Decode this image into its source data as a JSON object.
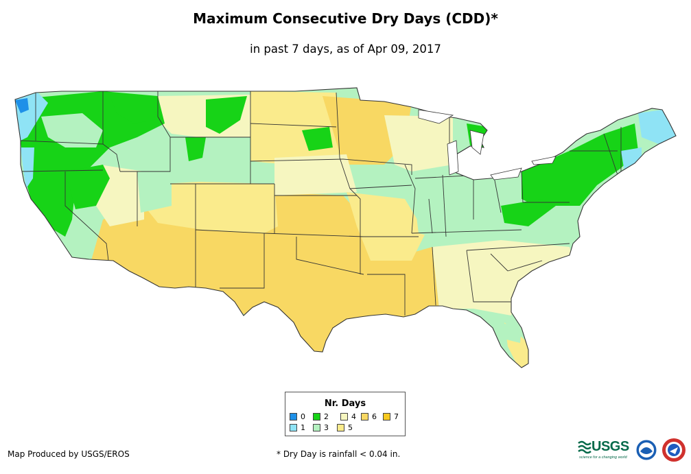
{
  "title": "Maximum Consecutive Dry Days (CDD)*",
  "subtitle": "in past 7 days, as of Apr 09, 2017",
  "legend": {
    "title": "Nr. Days",
    "items": [
      {
        "label": "0",
        "color": "#1e90e8"
      },
      {
        "label": "1",
        "color": "#8fe3f5"
      },
      {
        "label": "2",
        "color": "#17d317"
      },
      {
        "label": "3",
        "color": "#b4f2c0"
      },
      {
        "label": "4",
        "color": "#f6f6c0"
      },
      {
        "label": "5",
        "color": "#faeb8c"
      },
      {
        "label": "6",
        "color": "#f8d863"
      },
      {
        "label": "7",
        "color": "#f7c91f"
      }
    ]
  },
  "footer": {
    "credit": "Map Produced by USGS/EROS",
    "note": "* Dry Day is rainfall < 0.04 in."
  },
  "logos": {
    "usgs": "USGS",
    "usgs_tagline": "science for a changing world"
  },
  "colors": {
    "border": "#333333",
    "water": "#ffffff"
  }
}
